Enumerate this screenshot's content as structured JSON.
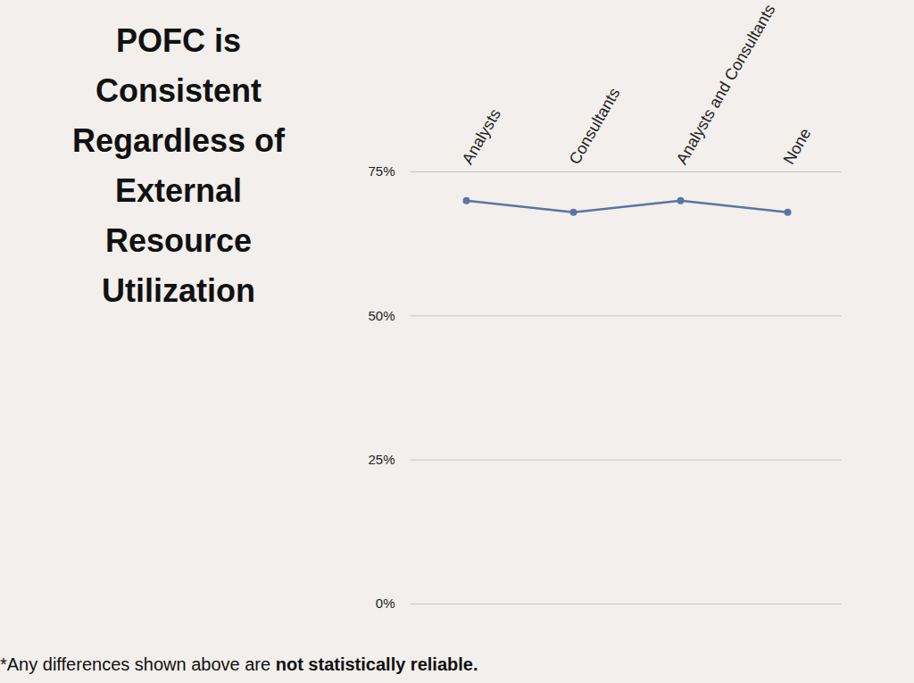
{
  "chart_data": {
    "type": "line",
    "title": "POFC is Consistent Regardless of External Resource Utilization",
    "categories": [
      "Analysts",
      "Consultants",
      "Analysts and Consultants",
      "None"
    ],
    "values": [
      70,
      68,
      70,
      68
    ],
    "color": "#5a75a3",
    "marker": "circle",
    "ylim": [
      0,
      75
    ],
    "yticks": [
      {
        "value": 0,
        "label": "0%"
      },
      {
        "value": 25,
        "label": "25%"
      },
      {
        "value": 50,
        "label": "50%"
      },
      {
        "value": 75,
        "label": "75%"
      }
    ],
    "grid": true,
    "footnote": {
      "text": "*Any differences shown above are ",
      "emphasis": "not statistically reliable."
    }
  }
}
